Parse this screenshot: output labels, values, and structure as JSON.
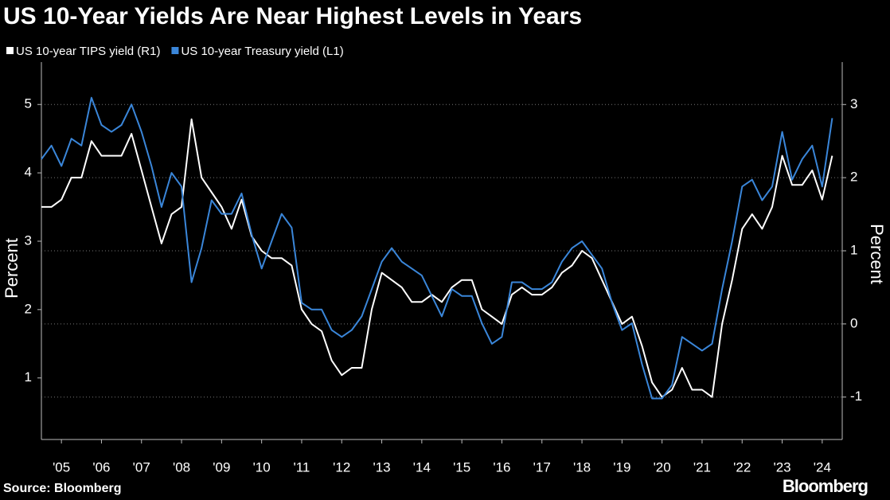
{
  "chart_data": {
    "type": "line",
    "title": "US 10-Year Yields Are Near Highest Levels in Years",
    "y_label": "Percent",
    "y2_label": "Percent",
    "source": "Source: Bloomberg",
    "brand": "Bloomberg",
    "x": [
      2005.0,
      2005.25,
      2005.5,
      2005.75,
      2006.0,
      2006.25,
      2006.5,
      2006.75,
      2007.0,
      2007.25,
      2007.5,
      2007.75,
      2008.0,
      2008.25,
      2008.5,
      2008.75,
      2009.0,
      2009.25,
      2009.5,
      2009.75,
      2010.0,
      2010.25,
      2010.5,
      2010.75,
      2011.0,
      2011.25,
      2011.5,
      2011.75,
      2012.0,
      2012.25,
      2012.5,
      2012.75,
      2013.0,
      2013.25,
      2013.5,
      2013.75,
      2014.0,
      2014.25,
      2014.5,
      2014.75,
      2015.0,
      2015.25,
      2015.5,
      2015.75,
      2016.0,
      2016.25,
      2016.5,
      2016.75,
      2017.0,
      2017.25,
      2017.5,
      2017.75,
      2018.0,
      2018.25,
      2018.5,
      2018.75,
      2019.0,
      2019.25,
      2019.5,
      2019.75,
      2020.0,
      2020.25,
      2020.5,
      2020.75,
      2021.0,
      2021.25,
      2021.5,
      2021.75,
      2022.0,
      2022.25,
      2022.5,
      2022.75,
      2023.0,
      2023.25,
      2023.5,
      2023.75,
      2024.0,
      2024.25,
      2024.5,
      2024.75
    ],
    "series": [
      {
        "name": "US 10-year TIPS yield (R1)",
        "color": "#ffffff",
        "axis": "y2",
        "values": [
          1.6,
          1.6,
          1.7,
          2.0,
          2.0,
          2.5,
          2.3,
          2.3,
          2.3,
          2.6,
          2.1,
          1.6,
          1.1,
          1.5,
          1.6,
          2.8,
          2.0,
          1.8,
          1.6,
          1.3,
          1.7,
          1.2,
          1.0,
          0.9,
          0.9,
          0.8,
          0.2,
          0.0,
          -0.1,
          -0.5,
          -0.7,
          -0.6,
          -0.6,
          0.2,
          0.7,
          0.6,
          0.5,
          0.3,
          0.3,
          0.4,
          0.3,
          0.5,
          0.6,
          0.6,
          0.2,
          0.1,
          0.0,
          0.4,
          0.5,
          0.4,
          0.4,
          0.5,
          0.7,
          0.8,
          1.0,
          0.9,
          0.6,
          0.3,
          0.0,
          0.1,
          -0.3,
          -0.8,
          -1.0,
          -0.9,
          -0.6,
          -0.9,
          -0.9,
          -1.0,
          0.0,
          0.6,
          1.3,
          1.5,
          1.3,
          1.6,
          2.3,
          1.9,
          1.9,
          2.1,
          1.7,
          2.3
        ]
      },
      {
        "name": "US 10-year Treasury yield (L1)",
        "color": "#3a86d9",
        "values": [
          4.2,
          4.4,
          4.1,
          4.5,
          4.4,
          5.1,
          4.7,
          4.6,
          4.7,
          5.0,
          4.6,
          4.1,
          3.5,
          4.0,
          3.8,
          2.4,
          2.9,
          3.6,
          3.4,
          3.4,
          3.7,
          3.1,
          2.6,
          3.0,
          3.4,
          3.2,
          2.1,
          2.0,
          2.0,
          1.7,
          1.6,
          1.7,
          1.9,
          2.3,
          2.7,
          2.9,
          2.7,
          2.6,
          2.5,
          2.2,
          1.9,
          2.3,
          2.2,
          2.2,
          1.8,
          1.5,
          1.6,
          2.4,
          2.4,
          2.3,
          2.3,
          2.4,
          2.7,
          2.9,
          3.0,
          2.8,
          2.6,
          2.1,
          1.7,
          1.8,
          1.2,
          0.7,
          0.7,
          0.9,
          1.6,
          1.5,
          1.4,
          1.5,
          2.3,
          3.0,
          3.8,
          3.9,
          3.6,
          3.8,
          4.6,
          3.9,
          4.2,
          4.4,
          3.8,
          4.8
        ]
      }
    ],
    "xlim": [
      2005,
      2025
    ],
    "xticks": [
      {
        "value": 2005.5,
        "label": "'05"
      },
      {
        "value": 2006.5,
        "label": "'06"
      },
      {
        "value": 2007.5,
        "label": "'07"
      },
      {
        "value": 2008.5,
        "label": "'08"
      },
      {
        "value": 2009.5,
        "label": "'09"
      },
      {
        "value": 2010.5,
        "label": "'10"
      },
      {
        "value": 2011.5,
        "label": "'11"
      },
      {
        "value": 2012.5,
        "label": "'12"
      },
      {
        "value": 2013.5,
        "label": "'13"
      },
      {
        "value": 2014.5,
        "label": "'14"
      },
      {
        "value": 2015.5,
        "label": "'15"
      },
      {
        "value": 2016.5,
        "label": "'16"
      },
      {
        "value": 2017.5,
        "label": "'17"
      },
      {
        "value": 2018.5,
        "label": "'18"
      },
      {
        "value": 2019.5,
        "label": "'19"
      },
      {
        "value": 2020.5,
        "label": "'20"
      },
      {
        "value": 2021.5,
        "label": "'21"
      },
      {
        "value": 2022.5,
        "label": "'22"
      },
      {
        "value": 2023.5,
        "label": "'23"
      },
      {
        "value": 2024.5,
        "label": "'24"
      }
    ],
    "ylim": [
      0.1,
      5.62
    ],
    "yticks": [
      1,
      2,
      3,
      4,
      5
    ],
    "y2lim": [
      -1.58,
      3.58
    ],
    "y2ticks": [
      -1,
      0,
      1,
      2,
      3
    ],
    "grid": true
  }
}
